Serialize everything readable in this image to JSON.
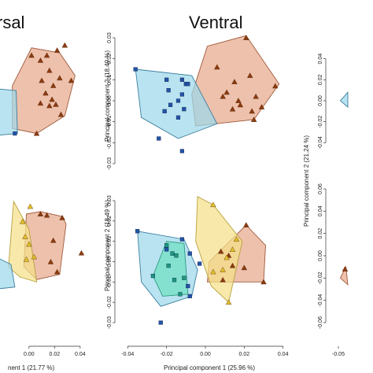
{
  "colors": {
    "blue_fill": "#9ed8ea",
    "blue_edge": "#3a7fa0",
    "blue_mark": "#2354a6",
    "brown_fill": "#e6a98c",
    "brown_edge": "#a05a3c",
    "brown_mark": "#8a3a10",
    "yellow_fill": "#f5e08a",
    "yellow_edge": "#b7a13c",
    "yellow_mark": "#e0c12a",
    "teal_fill": "#6fe0c4",
    "teal_edge": "#2a9a80",
    "teal_mark": "#1d9a7c",
    "olive_fill": "#c4903a"
  },
  "chart_data": [
    {
      "type": "scatter",
      "panel": "dorsal",
      "title": "rsal",
      "xlabel": "nent 1 (21.77 %)",
      "ylabel": "",
      "xlim": [
        -0.03,
        0.045
      ],
      "ylim_top": [
        -0.05,
        0.05
      ],
      "ylim_bottom": [
        -0.05,
        0.05
      ],
      "xticks": [
        "0.00",
        "0.02",
        "0.04"
      ],
      "xtick_values": [
        0.0,
        0.02,
        0.04
      ],
      "top_groups": [
        {
          "name": "",
          "marker": "triangle",
          "color": "brown",
          "hull": [
            [
              -0.013,
              0.012
            ],
            [
              0.002,
              0.042
            ],
            [
              0.024,
              0.038
            ],
            [
              0.036,
              0.02
            ],
            [
              0.028,
              -0.012
            ],
            [
              0.006,
              -0.026
            ],
            [
              -0.013,
              -0.022
            ]
          ],
          "points": [
            [
              0.002,
              0.036
            ],
            [
              0.009,
              0.032
            ],
            [
              0.014,
              0.036
            ],
            [
              0.022,
              0.04
            ],
            [
              0.028,
              0.044
            ],
            [
              0.016,
              0.024
            ],
            [
              0.01,
              0.016
            ],
            [
              0.019,
              0.012
            ],
            [
              0.024,
              0.018
            ],
            [
              0.033,
              0.016
            ],
            [
              0.013,
              0.006
            ],
            [
              0.018,
              0.001
            ],
            [
              0.021,
              -0.003
            ],
            [
              0.016,
              -0.004
            ],
            [
              0.009,
              -0.002
            ],
            [
              0.006,
              -0.026
            ],
            [
              0.025,
              -0.011
            ]
          ]
        },
        {
          "name": "",
          "marker": "square",
          "color": "blue",
          "hull": [
            [
              -0.03,
              0.01
            ],
            [
              -0.01,
              0.008
            ],
            [
              -0.009,
              -0.026
            ],
            [
              -0.03,
              -0.028
            ]
          ],
          "points": [
            [
              -0.011,
              -0.026
            ]
          ]
        }
      ],
      "bottom_groups": [
        {
          "name": "",
          "marker": "triangle",
          "color": "brown",
          "hull": [
            [
              -0.002,
              0.03
            ],
            [
              0.009,
              0.032
            ],
            [
              0.026,
              0.028
            ],
            [
              0.029,
              0.022
            ],
            [
              0.024,
              -0.018
            ],
            [
              0.006,
              -0.022
            ],
            [
              -0.004,
              -0.012
            ]
          ],
          "points": [
            [
              0.009,
              0.03
            ],
            [
              0.014,
              0.029
            ],
            [
              0.026,
              0.027
            ],
            [
              0.019,
              0.009
            ],
            [
              0.017,
              -0.008
            ],
            [
              0.041,
              -0.001
            ],
            [
              0.022,
              -0.016
            ]
          ]
        },
        {
          "name": "",
          "marker": "triangle",
          "color": "yellow",
          "hull": [
            [
              -0.012,
              0.04
            ],
            [
              0.0,
              0.018
            ],
            [
              0.006,
              -0.024
            ],
            [
              -0.007,
              -0.02
            ],
            [
              -0.016,
              -0.012
            ]
          ],
          "points": [
            [
              0.001,
              0.036
            ],
            [
              -0.005,
              0.024
            ],
            [
              -0.003,
              0.012
            ],
            [
              0.0,
              0.006
            ],
            [
              -0.002,
              -0.006
            ],
            [
              0.004,
              -0.004
            ]
          ]
        },
        {
          "name": "",
          "marker": "square",
          "color": "blue",
          "hull": [
            [
              -0.03,
              -0.002
            ],
            [
              -0.014,
              -0.01
            ],
            [
              -0.011,
              -0.028
            ],
            [
              -0.03,
              -0.03
            ]
          ],
          "points": []
        }
      ]
    },
    {
      "type": "scatter",
      "panel": "ventral",
      "title": "Ventral",
      "xlabel": "Principal component 1 (25.96 %)",
      "ylabel": "Principal component 2 (18.49 %)",
      "xlim": [
        -0.045,
        0.045
      ],
      "ylim_top": [
        -0.03,
        0.03
      ],
      "ylim_bottom": [
        -0.03,
        0.03
      ],
      "xticks": [
        "-0.04",
        "-0.02",
        "0.00",
        "0.02",
        "0.04"
      ],
      "xtick_values": [
        -0.04,
        -0.02,
        0.0,
        0.02,
        0.04
      ],
      "yticks": [
        "-0.03",
        "-0.02",
        "-0.01",
        "0.00",
        "0.01",
        "0.02",
        "0.03"
      ],
      "ytick_values": [
        -0.03,
        -0.02,
        -0.01,
        0.0,
        0.01,
        0.02,
        0.03
      ],
      "top_groups": [
        {
          "name": "",
          "marker": "triangle",
          "color": "brown",
          "hull": [
            [
              0.001,
              0.026
            ],
            [
              0.021,
              0.031
            ],
            [
              0.038,
              0.008
            ],
            [
              0.025,
              -0.009
            ],
            [
              -0.005,
              -0.012
            ],
            [
              -0.007,
              0.003
            ]
          ],
          "points": [
            [
              0.021,
              0.03
            ],
            [
              0.006,
              0.016
            ],
            [
              0.023,
              0.012
            ],
            [
              0.036,
              0.007
            ],
            [
              0.015,
              0.009
            ],
            [
              0.011,
              0.004
            ],
            [
              0.026,
              0.002
            ],
            [
              0.017,
              0.0
            ],
            [
              0.029,
              -0.003
            ],
            [
              0.014,
              -0.004
            ],
            [
              0.018,
              -0.002
            ],
            [
              0.024,
              -0.005
            ],
            [
              0.009,
              0.002
            ],
            [
              0.025,
              -0.009
            ]
          ]
        },
        {
          "name": "",
          "marker": "square",
          "color": "blue",
          "hull": [
            [
              -0.036,
              0.015
            ],
            [
              -0.007,
              0.012
            ],
            [
              0.006,
              -0.011
            ],
            [
              -0.014,
              -0.018
            ],
            [
              -0.033,
              -0.008
            ]
          ],
          "points": [
            [
              -0.036,
              0.015
            ],
            [
              -0.02,
              0.01
            ],
            [
              -0.012,
              0.01
            ],
            [
              -0.01,
              0.008
            ],
            [
              -0.019,
              0.005
            ],
            [
              -0.012,
              0.003
            ],
            [
              -0.014,
              0.0
            ],
            [
              -0.018,
              -0.002
            ],
            [
              -0.011,
              -0.004
            ],
            [
              -0.021,
              -0.005
            ],
            [
              -0.014,
              -0.008
            ],
            [
              -0.024,
              -0.018
            ],
            [
              -0.012,
              -0.024
            ],
            [
              -0.009,
              0.008
            ]
          ]
        }
      ],
      "bottom_groups": [
        {
          "name": "",
          "marker": "triangle",
          "color": "brown",
          "hull": [
            [
              0.021,
              0.018
            ],
            [
              0.031,
              0.008
            ],
            [
              0.03,
              -0.01
            ],
            [
              0.001,
              -0.01
            ],
            [
              0.002,
              0.0
            ]
          ],
          "points": [
            [
              0.021,
              0.018
            ],
            [
              0.008,
              0.005
            ],
            [
              0.012,
              0.003
            ],
            [
              0.014,
              -0.002
            ],
            [
              0.02,
              -0.003
            ],
            [
              0.03,
              -0.01
            ],
            [
              0.009,
              -0.009
            ]
          ]
        },
        {
          "name": "",
          "marker": "triangle",
          "color": "yellow",
          "hull": [
            [
              -0.004,
              0.032
            ],
            [
              0.004,
              0.028
            ],
            [
              0.019,
              0.01
            ],
            [
              0.012,
              -0.02
            ],
            [
              0.003,
              -0.012
            ],
            [
              -0.005,
              0.01
            ]
          ],
          "points": [
            [
              0.004,
              0.028
            ],
            [
              0.016,
              0.011
            ],
            [
              0.014,
              0.006
            ],
            [
              0.011,
              0.002
            ],
            [
              0.009,
              -0.004
            ],
            [
              0.012,
              -0.02
            ],
            [
              0.004,
              -0.005
            ]
          ]
        },
        {
          "name": "",
          "marker": "square",
          "color": "blue",
          "hull": [
            [
              -0.035,
              0.015
            ],
            [
              -0.011,
              0.011
            ],
            [
              -0.004,
              -0.004
            ],
            [
              -0.007,
              -0.017
            ],
            [
              -0.023,
              -0.022
            ],
            [
              -0.033,
              -0.01
            ]
          ],
          "points": [
            [
              -0.035,
              0.015
            ],
            [
              -0.012,
              0.011
            ],
            [
              -0.02,
              0.006
            ],
            [
              -0.008,
              0.004
            ],
            [
              -0.003,
              -0.001
            ],
            [
              -0.009,
              -0.012
            ],
            [
              -0.008,
              -0.017
            ],
            [
              -0.023,
              -0.03
            ]
          ]
        },
        {
          "name": "",
          "marker": "square",
          "color": "teal",
          "hull": [
            [
              -0.02,
              0.01
            ],
            [
              -0.011,
              0.009
            ],
            [
              -0.009,
              -0.016
            ],
            [
              -0.022,
              -0.017
            ],
            [
              -0.027,
              -0.007
            ]
          ],
          "points": [
            [
              -0.02,
              0.008
            ],
            [
              -0.017,
              0.004
            ],
            [
              -0.015,
              0.003
            ],
            [
              -0.019,
              -0.002
            ],
            [
              -0.027,
              -0.007
            ],
            [
              -0.016,
              -0.009
            ],
            [
              -0.011,
              -0.008
            ],
            [
              -0.013,
              -0.016
            ]
          ]
        }
      ]
    },
    {
      "type": "scatter",
      "panel": "third",
      "title": "",
      "xlabel": "",
      "ylabel": "Principal component 2 (21.24 %)",
      "xlim": [
        -0.06,
        0.0
      ],
      "ylim_top": [
        -0.06,
        0.06
      ],
      "ylim_bottom": [
        -0.06,
        0.06
      ],
      "xticks": [
        "-0.05"
      ],
      "xtick_values": [
        -0.05
      ],
      "yticks_top": [
        "-0.04",
        "-0.02",
        "0.00",
        "0.02",
        "0.04"
      ],
      "ytick_values_top": [
        -0.04,
        -0.02,
        0.0,
        0.02,
        0.04
      ],
      "yticks_bottom": [
        "-0.06",
        "-0.04",
        "-0.02",
        "0.00",
        "0.02",
        "0.04",
        "0.06"
      ],
      "ytick_values_bottom": [
        -0.06,
        -0.04,
        -0.02,
        0.0,
        0.02,
        0.04,
        0.06
      ],
      "top_groups": [
        {
          "name": "",
          "marker": "square",
          "color": "blue",
          "hull": [
            [
              -0.048,
              0.0
            ],
            [
              -0.04,
              0.008
            ],
            [
              -0.04,
              -0.006
            ]
          ],
          "points": []
        }
      ],
      "bottom_groups": [
        {
          "name": "",
          "marker": "triangle",
          "color": "brown",
          "hull": [
            [
              -0.048,
              -0.02
            ],
            [
              -0.042,
              -0.01
            ],
            [
              -0.04,
              -0.026
            ]
          ],
          "points": [
            [
              -0.043,
              -0.012
            ]
          ]
        }
      ]
    }
  ]
}
